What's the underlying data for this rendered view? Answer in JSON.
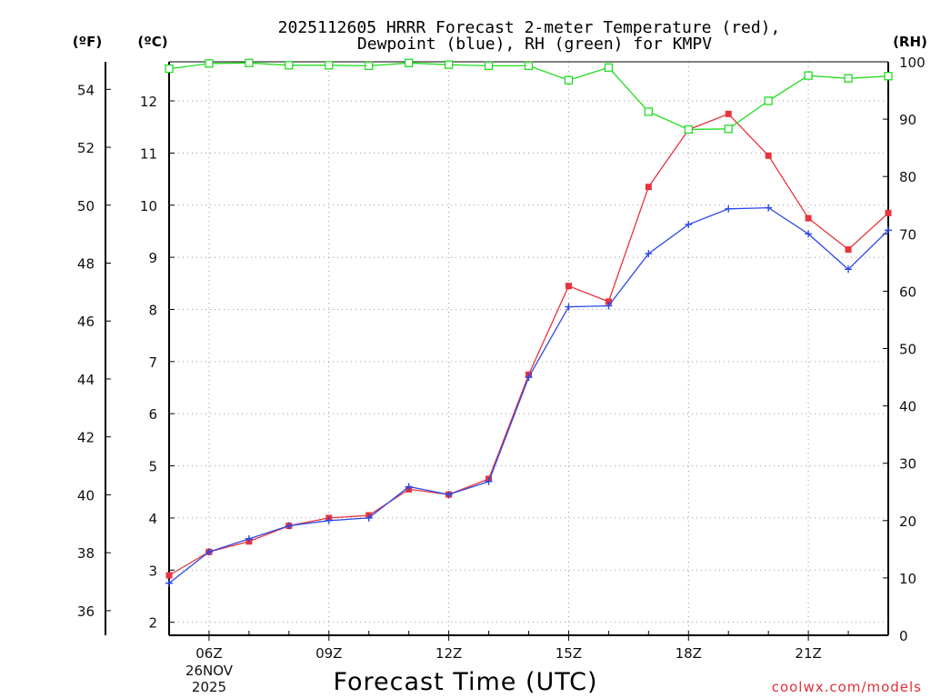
{
  "title": {
    "line1": "2025112605 HRRR Forecast 2-meter Temperature (red),",
    "line2": "Dewpoint (blue), RH (green) for KMPV"
  },
  "units": {
    "fahrenheit": "(ºF)",
    "celsius": "(ºC)",
    "rh": "(RH)"
  },
  "credit": "coolwx.com/models",
  "colors": {
    "temperature": "#e8343c",
    "dewpoint": "#2d48e6",
    "rh": "#22dd22"
  },
  "chart_data": {
    "type": "line",
    "title": "2025112605 HRRR Forecast 2-meter Temperature (red), Dewpoint (blue), RH (green) for KMPV",
    "xlabel": "Forecast Time (UTC)",
    "x_date_label": [
      "26NOV",
      "2025"
    ],
    "x": [
      "05Z",
      "06Z",
      "07Z",
      "08Z",
      "09Z",
      "10Z",
      "11Z",
      "12Z",
      "13Z",
      "14Z",
      "15Z",
      "16Z",
      "17Z",
      "18Z",
      "19Z",
      "20Z",
      "21Z",
      "22Z",
      "23Z"
    ],
    "x_ticks": [
      "06Z",
      "09Z",
      "12Z",
      "15Z",
      "18Z",
      "21Z"
    ],
    "xlim": [
      5,
      23
    ],
    "y_celsius": {
      "label": "(ºC)",
      "ylim": [
        1.75,
        12.75
      ],
      "ticks": [
        2,
        3,
        4,
        5,
        6,
        7,
        8,
        9,
        10,
        11,
        12
      ]
    },
    "y_fahrenheit": {
      "label": "(ºF)",
      "ticks": [
        36,
        38,
        40,
        42,
        44,
        46,
        48,
        50,
        52,
        54
      ]
    },
    "y_rh": {
      "label": "(RH)",
      "ylim": [
        0,
        100
      ],
      "ticks": [
        0,
        10,
        20,
        30,
        40,
        50,
        60,
        70,
        80,
        90,
        100
      ]
    },
    "series": [
      {
        "name": "Temperature",
        "color": "red",
        "marker": "square-filled",
        "axis": "celsius",
        "values": [
          2.9,
          3.35,
          3.55,
          3.85,
          4.0,
          4.05,
          4.55,
          4.45,
          4.75,
          6.75,
          8.45,
          8.15,
          10.35,
          11.45,
          11.75,
          10.95,
          9.75,
          9.15,
          9.85
        ]
      },
      {
        "name": "Dewpoint",
        "color": "blue",
        "marker": "plus",
        "axis": "celsius",
        "values": [
          2.75,
          3.35,
          3.6,
          3.85,
          3.95,
          4.0,
          4.6,
          4.45,
          4.7,
          6.7,
          8.05,
          8.07,
          9.07,
          9.63,
          9.93,
          9.95,
          9.45,
          8.77,
          9.52
        ]
      },
      {
        "name": "RH",
        "color": "green",
        "marker": "square-open",
        "axis": "rh",
        "values": [
          98.8,
          99.7,
          99.8,
          99.4,
          99.4,
          99.3,
          99.8,
          99.5,
          99.3,
          99.3,
          96.8,
          99.0,
          91.3,
          88.2,
          88.3,
          93.2,
          97.6,
          97.1,
          97.5
        ]
      }
    ]
  }
}
